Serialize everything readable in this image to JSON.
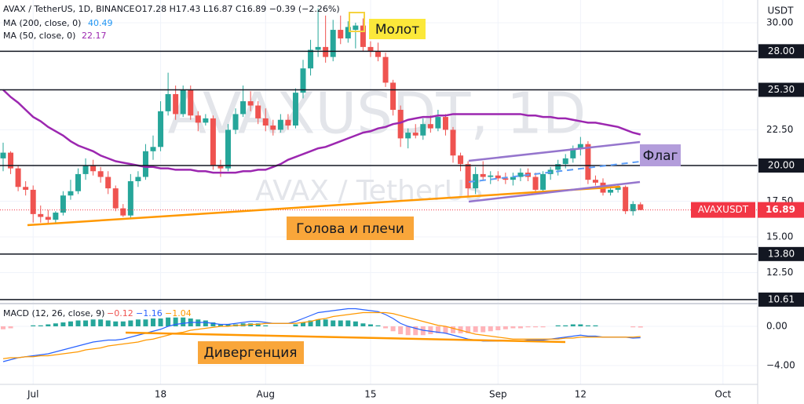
{
  "chart_data": [
    {
      "type": "candlestick",
      "symbol": "AVAX / TetherUS, 1D, BINANCE",
      "ohlc": "O17.28  H17.43  L16.87  C16.89  −0.39 (−2.26%)",
      "unit": "USDT",
      "watermark": "AVAXUSDT, 1D",
      "watermark_sub": "AVAX / TetherUS",
      "annotations": {
        "hammer": "Молот",
        "flag": "Флаг",
        "head_shoulders": "Голова и плечи"
      },
      "categories": [
        null,
        null,
        null,
        null,
        "Jul",
        null,
        null,
        null,
        null,
        null,
        null,
        null,
        null,
        null,
        null,
        null,
        null,
        null,
        null,
        null,
        null,
        "18",
        null,
        null,
        null,
        null,
        null,
        null,
        null,
        null,
        null,
        null,
        null,
        null,
        null,
        "Aug",
        null,
        null,
        null,
        null,
        null,
        null,
        null,
        null,
        null,
        null,
        null,
        null,
        null,
        "15",
        null,
        null,
        null,
        null,
        null,
        null,
        null,
        null,
        null,
        null,
        null,
        null,
        null,
        null,
        null,
        null,
        "Sep",
        null,
        null,
        null,
        null,
        null,
        null,
        null,
        null,
        null,
        null,
        "12",
        null,
        null,
        null,
        null,
        null,
        null,
        null,
        null,
        null,
        null,
        null,
        null,
        null,
        null,
        null,
        null,
        null,
        null,
        "Oct",
        null,
        null,
        null,
        null
      ],
      "open": [
        20.5,
        20.9,
        19.8,
        18.5,
        18.3,
        16.6,
        16.4,
        16.2,
        16.7,
        17.9,
        18.2,
        19.4,
        20.0,
        19.6,
        19.2,
        18.4,
        17.0,
        16.5,
        18.9,
        19.2,
        21.0,
        21.3,
        23.8,
        25.0,
        23.6,
        25.3,
        23.5,
        23.0,
        23.3,
        20.0,
        19.8,
        22.5,
        23.6,
        24.5,
        24.2,
        23.3,
        22.8,
        22.5,
        23.2,
        22.8,
        25.1,
        26.8,
        28.1,
        28.3,
        27.6,
        29.5,
        28.9,
        29.5,
        29.8,
        28.3,
        28.0,
        27.6,
        25.8,
        23.9,
        21.9,
        22.3,
        22.1,
        22.9,
        22.6,
        23.4,
        22.5,
        20.7,
        20.1,
        18.4,
        19.4,
        19.2,
        19.3,
        19.1,
        19.0,
        19.2,
        19.5,
        19.2,
        18.3,
        19.4,
        19.7,
        20.1,
        20.5,
        21.2,
        21.5,
        19.0,
        18.8,
        18.1,
        18.3,
        18.5,
        16.8,
        17.28,
        null,
        null,
        null,
        null,
        null,
        null,
        null,
        null,
        null,
        null,
        null,
        null,
        null,
        null,
        null
      ],
      "high": [
        21.6,
        21.0,
        20.0,
        18.9,
        18.6,
        17.2,
        16.9,
        16.8,
        18.2,
        19.0,
        19.8,
        20.5,
        20.4,
        19.9,
        19.6,
        18.6,
        17.3,
        19.4,
        19.6,
        21.5,
        22.1,
        24.5,
        26.5,
        25.6,
        25.6,
        25.6,
        23.8,
        23.6,
        23.5,
        20.4,
        22.9,
        24.0,
        25.6,
        25.2,
        24.5,
        24.0,
        23.2,
        23.6,
        23.6,
        25.4,
        27.4,
        28.8,
        31.0,
        30.5,
        30.2,
        30.5,
        30.1,
        30.0,
        30.3,
        28.7,
        28.6,
        27.9,
        26.0,
        24.2,
        22.6,
        22.9,
        23.3,
        23.5,
        23.9,
        23.6,
        22.7,
        20.9,
        20.3,
        19.9,
        20.3,
        19.6,
        19.6,
        19.5,
        19.5,
        19.8,
        19.8,
        19.5,
        19.6,
        19.9,
        20.4,
        20.8,
        21.4,
        22.0,
        21.7,
        19.3,
        19.1,
        18.5,
        18.6,
        18.6,
        17.5,
        17.43,
        null,
        null,
        null,
        null,
        null,
        null,
        null,
        null,
        null,
        null,
        null,
        null,
        null,
        null,
        null
      ],
      "low": [
        19.6,
        19.4,
        18.2,
        17.9,
        16.0,
        16.0,
        15.9,
        16.0,
        16.5,
        17.6,
        18.0,
        19.0,
        19.3,
        18.8,
        18.0,
        16.8,
        16.4,
        16.3,
        18.5,
        19.0,
        20.4,
        21.0,
        23.5,
        23.2,
        23.4,
        23.2,
        22.4,
        22.8,
        19.7,
        19.2,
        19.6,
        22.2,
        23.4,
        23.8,
        22.9,
        22.4,
        22.1,
        22.3,
        22.5,
        22.6,
        24.7,
        26.3,
        27.6,
        27.2,
        27.3,
        28.5,
        28.6,
        28.2,
        28.0,
        27.6,
        27.3,
        25.5,
        23.5,
        21.3,
        21.2,
        21.9,
        21.8,
        22.3,
        22.4,
        22.1,
        20.2,
        19.6,
        17.8,
        18.0,
        19.0,
        18.7,
        18.9,
        18.7,
        18.6,
        18.9,
        18.9,
        18.1,
        18.1,
        19.0,
        19.3,
        19.8,
        20.2,
        20.7,
        18.7,
        18.6,
        17.9,
        17.9,
        18.1,
        16.6,
        16.5,
        16.87,
        null,
        null,
        null,
        null,
        null,
        null,
        null,
        null,
        null,
        null,
        null,
        null,
        null,
        null,
        null
      ],
      "close": [
        20.9,
        19.8,
        18.5,
        18.3,
        16.6,
        16.4,
        16.2,
        16.7,
        17.9,
        18.2,
        19.4,
        20.0,
        19.6,
        19.2,
        18.4,
        17.0,
        16.5,
        18.9,
        19.2,
        21.0,
        21.3,
        23.8,
        25.0,
        23.6,
        25.3,
        23.5,
        23.0,
        23.3,
        20.0,
        19.8,
        22.5,
        23.6,
        24.5,
        24.2,
        23.3,
        22.8,
        22.5,
        23.2,
        22.8,
        25.1,
        26.8,
        28.1,
        28.3,
        27.6,
        29.5,
        28.9,
        29.7,
        29.8,
        28.3,
        28.0,
        27.6,
        25.8,
        23.9,
        21.9,
        22.3,
        22.1,
        22.9,
        22.6,
        23.4,
        22.5,
        20.7,
        20.1,
        18.4,
        19.4,
        19.2,
        19.3,
        19.1,
        19.0,
        19.2,
        19.5,
        19.2,
        18.3,
        19.4,
        19.7,
        20.1,
        20.5,
        21.2,
        21.5,
        19.0,
        18.8,
        18.1,
        18.3,
        18.5,
        16.8,
        17.3,
        16.89,
        null,
        null,
        null,
        null,
        null,
        null,
        null,
        null,
        null,
        null,
        null,
        null,
        null,
        null,
        null
      ],
      "up_color": "#26a69a",
      "down_color": "#ef5350",
      "legend_extra": [
        {
          "name": "MA (200, close, 0)",
          "last": "40.49",
          "color": "#2196f3"
        }
      ],
      "overlays": [
        {
          "name": "MA (50, close, 0)",
          "last": "22.17",
          "color": "#9c27b0",
          "values": [
            25.3,
            24.8,
            24.4,
            23.9,
            23.4,
            23.1,
            22.7,
            22.4,
            22.1,
            21.7,
            21.4,
            21.2,
            21.0,
            20.7,
            20.5,
            20.3,
            20.2,
            20.1,
            20.0,
            19.9,
            19.9,
            19.8,
            19.8,
            19.7,
            19.7,
            19.7,
            19.6,
            19.6,
            19.5,
            19.5,
            19.5,
            19.5,
            19.6,
            19.6,
            19.7,
            19.7,
            19.9,
            20.1,
            20.4,
            20.6,
            20.8,
            21.0,
            21.2,
            21.3,
            21.5,
            21.7,
            21.9,
            22.1,
            22.3,
            22.4,
            22.6,
            22.7,
            22.9,
            23.0,
            23.2,
            23.3,
            23.4,
            23.4,
            23.5,
            23.5,
            23.6,
            23.6,
            23.6,
            23.6,
            23.6,
            23.6,
            23.6,
            23.6,
            23.6,
            23.6,
            23.5,
            23.5,
            23.4,
            23.4,
            23.3,
            23.3,
            23.2,
            23.1,
            23.0,
            23.0,
            22.9,
            22.8,
            22.7,
            22.5,
            22.3,
            22.17,
            null,
            null,
            null,
            null,
            null,
            null,
            null,
            null,
            null,
            null,
            null,
            null,
            null,
            null,
            null
          ]
        }
      ],
      "levels": [
        {
          "value": 28,
          "label": "28.00"
        },
        {
          "value": 25.3,
          "label": "25.30"
        },
        {
          "value": 20,
          "label": "20.00"
        },
        {
          "value": 13.8,
          "label": "13.80"
        },
        {
          "value": 10.61,
          "label": "10.61"
        }
      ],
      "price_tag": {
        "name": "AVAXUSDT",
        "value": 16.89,
        "color": "#f23645"
      },
      "ylim": [
        10.44,
        31.59
      ],
      "yticks": [
        {
          "value": 30,
          "label": "30.00"
        },
        {
          "value": 22.5,
          "label": "22.50"
        },
        {
          "value": 17.5,
          "label": "17.50"
        },
        {
          "value": 15,
          "label": "15.00"
        },
        {
          "value": 12.5,
          "label": "12.50"
        }
      ],
      "grid": true
    },
    {
      "type": "macd",
      "title": "MACD (12, 26, close, 9)",
      "header_values": [
        {
          "label": "−0.12",
          "color": "#ef5350"
        },
        {
          "label": "−1.16",
          "color": "#2962ff"
        },
        {
          "label": "−1.04",
          "color": "#ff9800"
        }
      ],
      "annotation": "Дивергенция",
      "macd": {
        "color": "#2962ff",
        "values": [
          -3.6,
          -3.4,
          -3.2,
          -3.1,
          -3.0,
          -2.9,
          -2.8,
          -2.6,
          -2.4,
          -2.2,
          -2.0,
          -1.8,
          -1.6,
          -1.5,
          -1.4,
          -1.4,
          -1.3,
          -1.1,
          -0.9,
          -0.7,
          -0.5,
          -0.3,
          0.0,
          0.2,
          0.3,
          0.4,
          0.4,
          0.4,
          0.3,
          0.2,
          0.2,
          0.3,
          0.4,
          0.5,
          0.5,
          0.4,
          0.3,
          0.3,
          0.3,
          0.5,
          0.8,
          1.1,
          1.4,
          1.5,
          1.6,
          1.7,
          1.8,
          1.8,
          1.7,
          1.6,
          1.5,
          1.2,
          0.8,
          0.3,
          0.0,
          -0.2,
          -0.4,
          -0.5,
          -0.6,
          -0.7,
          -0.9,
          -1.1,
          -1.3,
          -1.4,
          -1.5,
          -1.5,
          -1.5,
          -1.5,
          -1.5,
          -1.5,
          -1.4,
          -1.4,
          -1.4,
          -1.3,
          -1.2,
          -1.1,
          -1.0,
          -0.9,
          -1.0,
          -1.0,
          -1.1,
          -1.1,
          -1.1,
          -1.1,
          -1.2,
          -1.16,
          null,
          null,
          null,
          null,
          null,
          null,
          null,
          null,
          null,
          null,
          null,
          null,
          null,
          null,
          null
        ]
      },
      "signal": {
        "color": "#ff9800",
        "values": [
          -3.3,
          -3.2,
          -3.2,
          -3.1,
          -3.1,
          -3.0,
          -3.0,
          -2.9,
          -2.8,
          -2.7,
          -2.6,
          -2.4,
          -2.3,
          -2.2,
          -2.0,
          -1.9,
          -1.8,
          -1.7,
          -1.6,
          -1.4,
          -1.3,
          -1.1,
          -0.9,
          -0.7,
          -0.6,
          -0.4,
          -0.3,
          -0.2,
          -0.1,
          0.0,
          0.0,
          0.1,
          0.1,
          0.2,
          0.2,
          0.3,
          0.3,
          0.3,
          0.3,
          0.3,
          0.4,
          0.5,
          0.7,
          0.8,
          1.0,
          1.1,
          1.2,
          1.3,
          1.4,
          1.4,
          1.4,
          1.4,
          1.3,
          1.1,
          0.9,
          0.7,
          0.5,
          0.3,
          0.1,
          0.0,
          -0.2,
          -0.4,
          -0.6,
          -0.8,
          -0.9,
          -1.0,
          -1.1,
          -1.2,
          -1.3,
          -1.3,
          -1.3,
          -1.3,
          -1.3,
          -1.3,
          -1.3,
          -1.2,
          -1.2,
          -1.1,
          -1.1,
          -1.1,
          -1.1,
          -1.1,
          -1.1,
          -1.1,
          -1.1,
          -1.04,
          null,
          null,
          null,
          null,
          null,
          null,
          null,
          null,
          null,
          null,
          null,
          null,
          null,
          null,
          null
        ]
      },
      "histogram": {
        "up_color": "#26a69a",
        "down_color": "#ffb3b8",
        "values": [
          -0.3,
          -0.2,
          0.0,
          0.0,
          0.1,
          0.1,
          0.2,
          0.3,
          0.4,
          0.5,
          0.6,
          0.6,
          0.7,
          0.7,
          0.6,
          0.5,
          0.5,
          0.6,
          0.7,
          0.7,
          0.8,
          0.8,
          0.9,
          0.9,
          0.9,
          0.8,
          0.7,
          0.6,
          0.4,
          0.2,
          0.2,
          0.2,
          0.3,
          0.3,
          0.3,
          0.1,
          0.0,
          0.0,
          0.0,
          0.2,
          0.4,
          0.6,
          0.7,
          0.7,
          0.6,
          0.6,
          0.6,
          0.5,
          0.3,
          0.2,
          0.1,
          -0.2,
          -0.5,
          -0.8,
          -0.9,
          -0.9,
          -0.9,
          -0.8,
          -0.7,
          -0.7,
          -0.7,
          -0.7,
          -0.7,
          -0.6,
          -0.6,
          -0.5,
          -0.4,
          -0.3,
          -0.2,
          -0.2,
          -0.1,
          -0.1,
          -0.1,
          0.0,
          0.1,
          0.1,
          0.2,
          0.2,
          0.1,
          0.1,
          0.0,
          0.0,
          0.0,
          0.0,
          -0.1,
          -0.12,
          null,
          null,
          null,
          null,
          null,
          null,
          null,
          null,
          null,
          null,
          null,
          null,
          null,
          null,
          null
        ]
      },
      "ylim": [
        -5.92,
        2.24
      ],
      "yticks": [
        {
          "value": 0,
          "label": "0.00"
        },
        {
          "value": -4,
          "label": "−4.00"
        }
      ]
    }
  ]
}
